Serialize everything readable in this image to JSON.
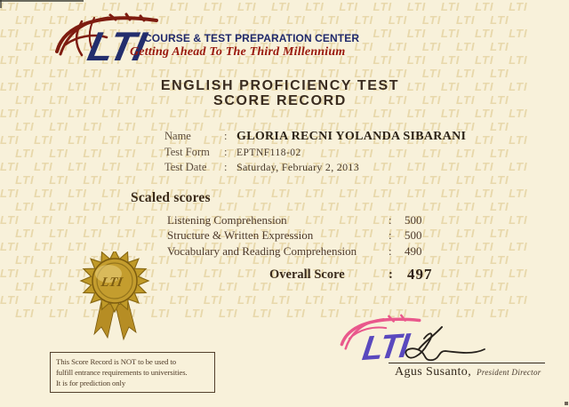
{
  "header": {
    "logo_text": "LTI",
    "org_name": "COURSE & TEST PREPARATION CENTER",
    "tagline": "Getting Ahead To The Third Millennium"
  },
  "title": {
    "line1": "ENGLISH PROFICIENCY TEST",
    "line2": "SCORE RECORD"
  },
  "info": {
    "rows": [
      {
        "label": "Name",
        "sep": ":",
        "value": "GLORIA RECNI YOLANDA SIBARANI"
      },
      {
        "label": "Test Form",
        "sep": ":",
        "value": "EPTNF118-02"
      },
      {
        "label": "Test Date",
        "sep": ":",
        "value": "Saturday, February 2, 2013"
      }
    ]
  },
  "scores": {
    "heading": "Scaled scores",
    "rows": [
      {
        "label": "Listening Comprehension",
        "sep": ":",
        "value": "500"
      },
      {
        "label": "Structure & Written Expression",
        "sep": ":",
        "value": "500"
      },
      {
        "label": "Vocabulary and Reading Comprehension",
        "sep": ":",
        "value": "490"
      }
    ],
    "overall_label": "Overall Score",
    "overall_sep": ":",
    "overall_value": "497"
  },
  "seal": {
    "text": "LTI"
  },
  "stamp": {
    "text": "LTI"
  },
  "watermark": {
    "text": "LTI",
    "rows": 24,
    "repeats": 16
  },
  "disclaimer": {
    "line1": "This Score Record is NOT to be used to",
    "line2": "fulfill entrance requirements to universities.",
    "line3": "It is for prediction only"
  },
  "signature": {
    "name": "Agus Susanto,",
    "title": "President Director"
  },
  "colors": {
    "background": "#f8f1da",
    "navy": "#232e6d",
    "maroon": "#7e1c10",
    "script_red": "#99180d",
    "title_brown": "#3a2c20",
    "gold": "#c09a28",
    "stamp_purple": "#5240bd",
    "stamp_pink": "#e84b86",
    "ink": "#26211c"
  }
}
